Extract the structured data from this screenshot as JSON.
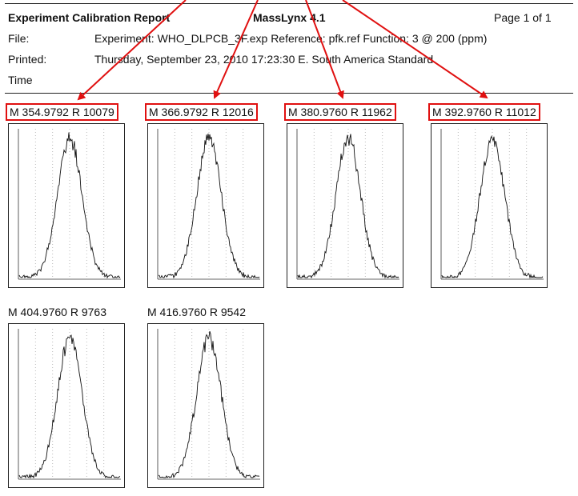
{
  "header": {
    "title": "Experiment Calibration Report",
    "software": "MassLynx 4.1",
    "page": "Page 1 of 1",
    "rows": [
      {
        "label": "File:",
        "value": "Experiment: WHO_DLPCB_3F.exp   Reference: pfk.ref   Function: 3 @ 200 (ppm)"
      },
      {
        "label": "Printed:",
        "value": "Thursday, September 23, 2010 17:23:30 E. South America Standard"
      },
      {
        "label": "Time",
        "value": ""
      }
    ]
  },
  "panels": [
    {
      "label": "M 354.9792  R 10079",
      "highlighted": true
    },
    {
      "label": "M 366.9792  R 12016",
      "highlighted": true
    },
    {
      "label": "M 380.9760  R 11962",
      "highlighted": true
    },
    {
      "label": "M 392.9760  R 11012",
      "highlighted": true
    },
    {
      "label": "M 404.9760  R 9763",
      "highlighted": false
    },
    {
      "label": "M 416.9760  R 9542",
      "highlighted": false
    }
  ],
  "colors": {
    "highlight": "#e01010",
    "trace": "#111111"
  }
}
